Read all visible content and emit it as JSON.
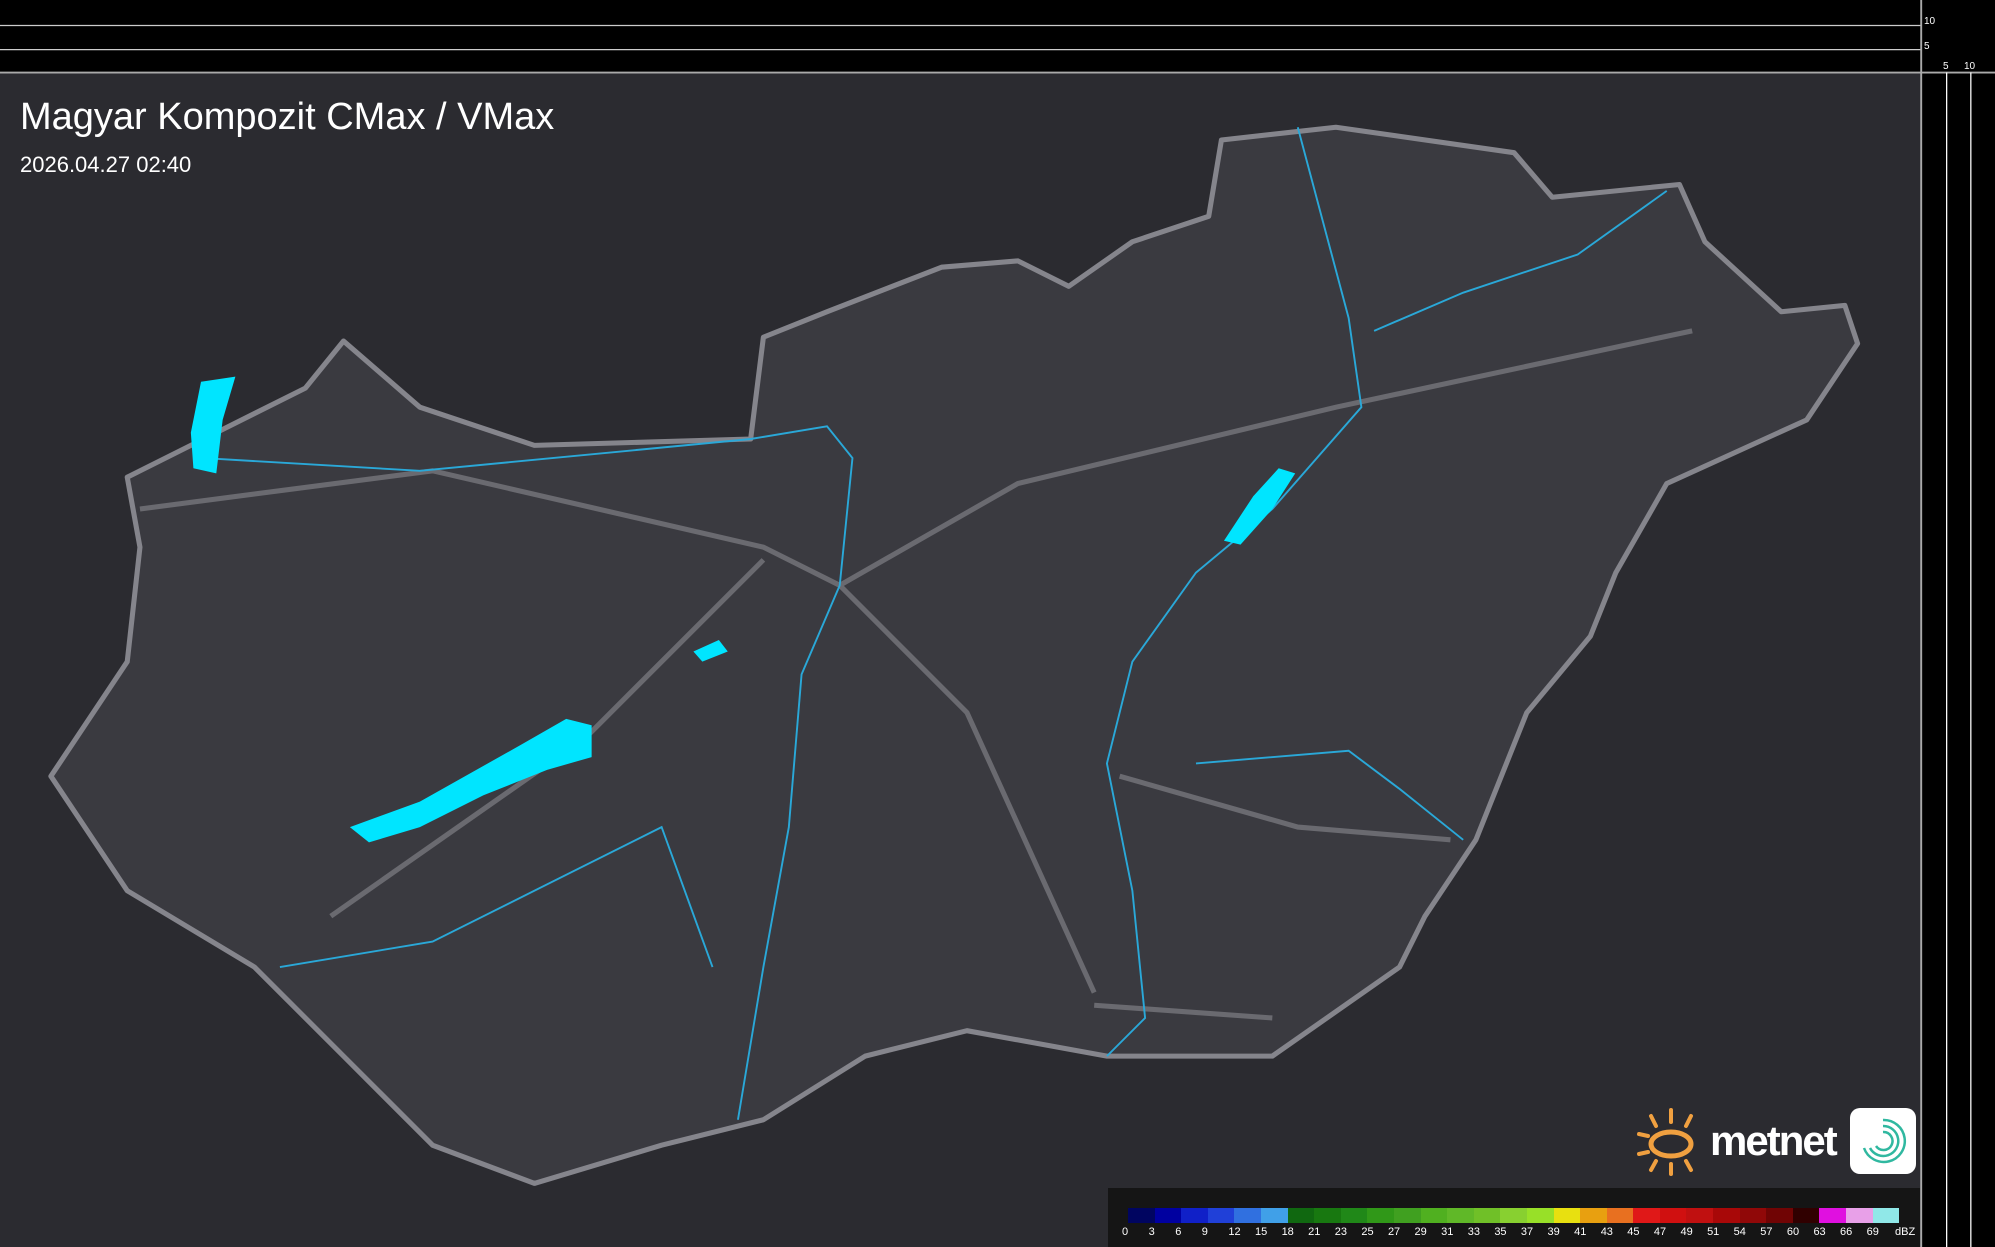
{
  "map": {
    "title": "Magyar Kompozit CMax / VMax",
    "timestamp": "2026.04.27 02:40",
    "scale_ticks": {
      "vertical": [
        "10",
        "5"
      ],
      "horizontal": [
        "5",
        "10"
      ]
    },
    "colors": {
      "background": "#2a2a2e",
      "country_fill": "#3a3a40",
      "border": "#8a8a90",
      "rivers": "#2aa8d8",
      "lakes": "#00e5ff"
    }
  },
  "legend": {
    "unit": "dBZ",
    "labels": [
      "0",
      "3",
      "6",
      "9",
      "12",
      "15",
      "18",
      "21",
      "23",
      "25",
      "27",
      "29",
      "31",
      "33",
      "35",
      "37",
      "39",
      "41",
      "43",
      "45",
      "47",
      "49",
      "51",
      "54",
      "57",
      "60",
      "63",
      "66",
      "69"
    ],
    "colors": [
      "#000560",
      "#0000a0",
      "#1020c8",
      "#2040d8",
      "#3070e0",
      "#40a0e8",
      "#106810",
      "#187810",
      "#208818",
      "#309818",
      "#40a020",
      "#50b020",
      "#60b828",
      "#70c028",
      "#88d030",
      "#98e028",
      "#e8e010",
      "#e8a010",
      "#e87020",
      "#e01818",
      "#d01010",
      "#c01010",
      "#a80808",
      "#900808",
      "#700404",
      "#300000",
      "#e010e0",
      "#e8a0e8",
      "#90e8e8"
    ]
  },
  "branding": {
    "logo_text": "metnet"
  }
}
